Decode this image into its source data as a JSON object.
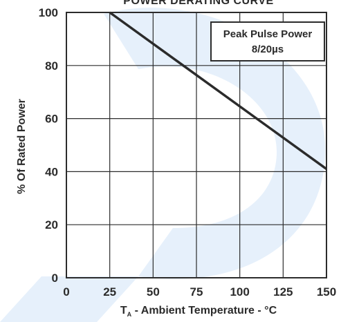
{
  "chart_data": {
    "type": "line",
    "title": "POWER DERATING CURVE",
    "xlabel_symbol": "T",
    "xlabel_subscript": "A",
    "xlabel_rest": " - Ambient Temperature - °C",
    "ylabel": "% Of Rated Power",
    "xlim": [
      0,
      150
    ],
    "ylim": [
      0,
      100
    ],
    "x_ticks": [
      "0",
      "25",
      "50",
      "75",
      "100",
      "125",
      "150"
    ],
    "y_ticks": [
      "0",
      "20",
      "40",
      "60",
      "80",
      "100"
    ],
    "grid": true,
    "series": [
      {
        "name": "Peak Pulse Power 8/20µs",
        "x": [
          25,
          150
        ],
        "y": [
          100,
          41
        ],
        "color": "#2b2b2b"
      }
    ],
    "legend": {
      "line1": "Peak Pulse Power",
      "line2": "8/20µs",
      "position": "top-right"
    },
    "watermark_color": "#e6f0fb"
  }
}
